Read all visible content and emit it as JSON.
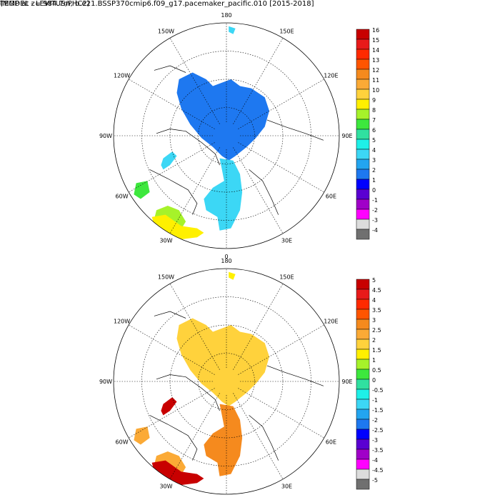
{
  "figure": {
    "title": "TEMP at z= 984.7m, b.e21.BSSP370cmip6.f09_g17.pacemaker_pacific.010 [2015-2018]",
    "subtitle": "(MODEL - LEVITUS/PHC2)"
  },
  "maps": [
    {
      "id": "model",
      "lon_labels": {
        "180": "180",
        "150E": "150E",
        "120E": "120E",
        "90E": "90E",
        "60E": "60E",
        "30E": "30E",
        "0": "0",
        "30W": "30W",
        "60W": "60W",
        "90W": "90W",
        "120W": "120W",
        "150W": "150W"
      },
      "colorbar_labels": [
        "16",
        "15",
        "14",
        "13",
        "12",
        "11",
        "10",
        "9",
        "8",
        "7",
        "6",
        "5",
        "4",
        "3",
        "2",
        "1",
        "0",
        "-1",
        "-2",
        "-3",
        "-4"
      ],
      "colorbar_colors": [
        "#c80000",
        "#e81a1a",
        "#ff2a00",
        "#ff5500",
        "#f58a1e",
        "#fbaa36",
        "#ffd23c",
        "#fff000",
        "#a6f22a",
        "#3de83d",
        "#30e0a0",
        "#1ef0e8",
        "#3cd7f5",
        "#23a5f0",
        "#1e78f0",
        "#0000ff",
        "#5a00d2",
        "#a000c8",
        "#ff00ff",
        "#dcdcdc",
        "#707070"
      ],
      "fill_colors": {
        "arctic_basin": "#1e78f0",
        "nordic_seas": "#3cd7f5",
        "baffin": "#3cd7f5",
        "labrador": "#3de83d",
        "atlantic_warm": "#fff000",
        "atlantic_mid": "#a6f22a",
        "pacific_tip": "#3cd7f5"
      }
    },
    {
      "id": "difference",
      "lon_labels": {
        "180": "180",
        "150E": "150E",
        "120E": "120E",
        "90E": "90E",
        "60E": "60E",
        "30E": "30E",
        "0": "0",
        "30W": "30W",
        "60W": "60W",
        "90W": "90W",
        "120W": "120W",
        "150W": "150W"
      },
      "colorbar_labels": [
        "5",
        "4.5",
        "4",
        "3.5",
        "3",
        "2.5",
        "2",
        "1.5",
        "1",
        "0.5",
        "0",
        "-0.5",
        "-1",
        "-1.5",
        "-2",
        "-2.5",
        "-3",
        "-3.5",
        "-4",
        "-4.5",
        "-5"
      ],
      "colorbar_colors": [
        "#c80000",
        "#e81a1a",
        "#ff2a00",
        "#ff5500",
        "#f58a1e",
        "#fbaa36",
        "#ffd23c",
        "#fff000",
        "#a6f22a",
        "#3de83d",
        "#30e0a0",
        "#1ef0e8",
        "#3cd7f5",
        "#23a5f0",
        "#1e78f0",
        "#0000ff",
        "#5a00d2",
        "#a000c8",
        "#ff00ff",
        "#dcdcdc",
        "#707070"
      ],
      "fill_colors": {
        "arctic_basin": "#ffd23c",
        "nordic_seas": "#f58a1e",
        "baffin": "#c80000",
        "labrador": "#fbaa36",
        "atlantic_warm": "#c80000",
        "atlantic_mid": "#fbaa36",
        "pacific_tip": "#fff000"
      }
    }
  ]
}
